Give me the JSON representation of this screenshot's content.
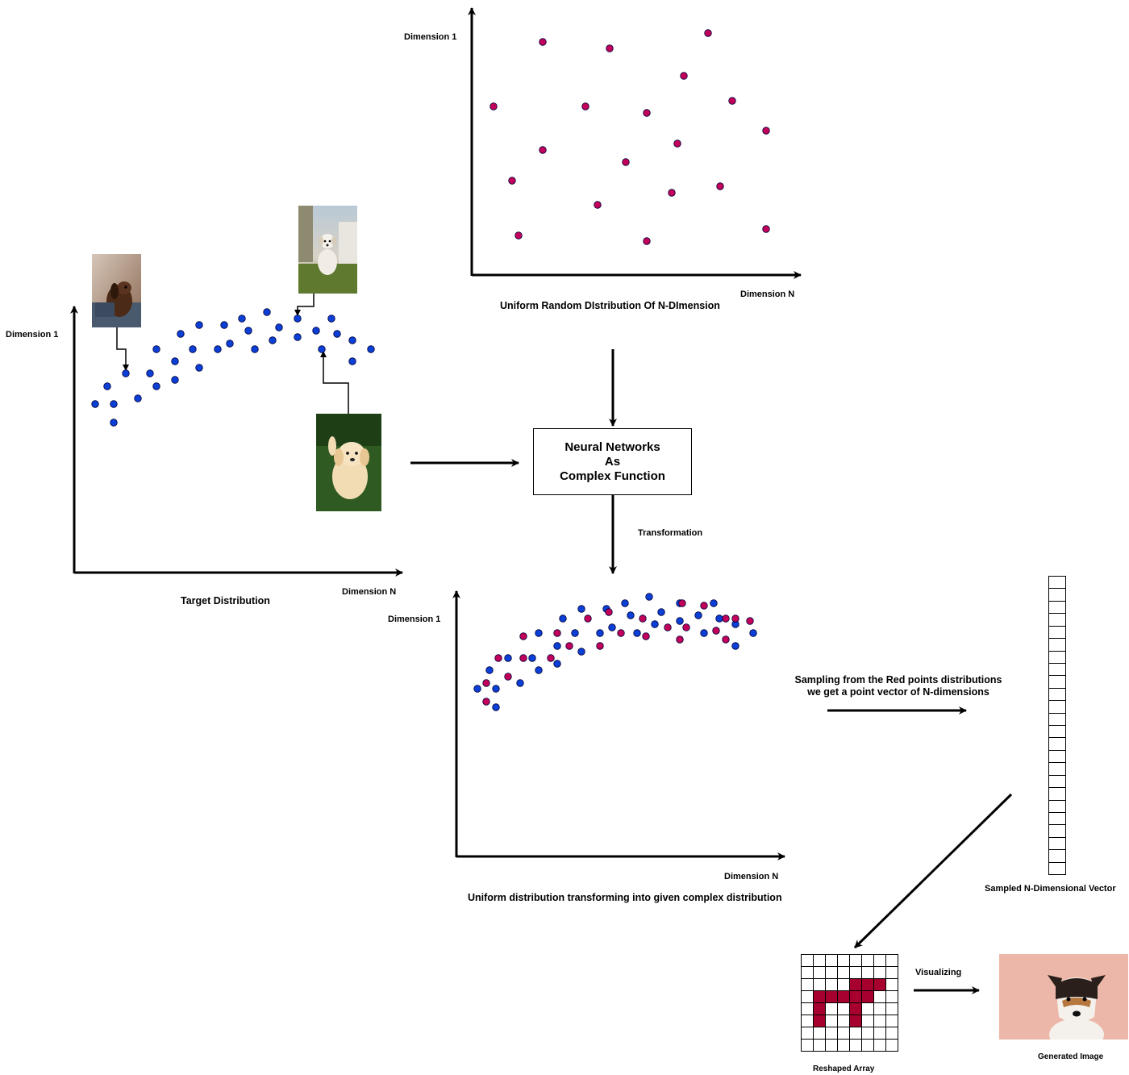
{
  "colors": {
    "uniform_point": "#c2005a",
    "target_point": "#0b3fd6",
    "point_stroke": "#00003a",
    "reshaped_fill": "#a8002e",
    "axis": "#000000"
  },
  "uniform_plot": {
    "y_label": "Dimension 1",
    "x_label": "Dimension N",
    "caption": "Uniform Random DIstribution Of N-DImension"
  },
  "target_plot": {
    "y_label": "Dimension 1",
    "x_label": "Dimension N",
    "caption": "Target Distribution"
  },
  "transform_plot": {
    "y_label": "Dimension 1",
    "x_label": "Dimension N",
    "caption": "Uniform  distribution transforming into given complex distribution"
  },
  "neural_box": {
    "text": "Neural Networks\nAs\nComplex Function"
  },
  "transformation_label": "Transformation",
  "sampling_label": "Sampling from the Red points distributions\n we get a point vector of N-dimensions",
  "vector_label": "Sampled N-Dimensional Vector",
  "vector_cells": 24,
  "reshaped_label": "Reshaped Array",
  "reshaped_on_cells": [
    [
      2,
      4
    ],
    [
      2,
      5
    ],
    [
      2,
      6
    ],
    [
      3,
      1
    ],
    [
      3,
      2
    ],
    [
      3,
      3
    ],
    [
      3,
      4
    ],
    [
      3,
      5
    ],
    [
      4,
      1
    ],
    [
      4,
      4
    ],
    [
      5,
      1
    ],
    [
      5,
      4
    ]
  ],
  "visualizing_label": "Visualizing",
  "generated_label": "Generated Image",
  "photo_icons": [
    "dog-photo-dachshund",
    "dog-photo-white-puppy",
    "dog-photo-golden-puppy",
    "dog-photo-jack-russell"
  ]
}
